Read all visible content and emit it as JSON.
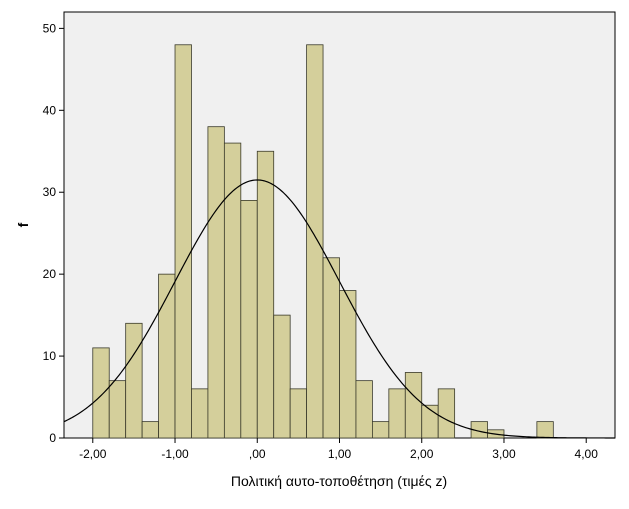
{
  "chart_data": {
    "type": "bar",
    "subtype": "histogram-with-normal-curve",
    "xlabel": "Πολιτική αυτο-τοποθέτηση (τιμές z)",
    "ylabel": "f",
    "xlim": [
      -2.35,
      4.35
    ],
    "ylim": [
      0,
      52
    ],
    "x_ticks": [
      -2,
      -1,
      0,
      1,
      2,
      3,
      4
    ],
    "x_tick_labels": [
      "-2,00",
      "-1,00",
      ",00",
      "1,00",
      "2,00",
      "3,00",
      "4,00"
    ],
    "y_ticks": [
      0,
      10,
      20,
      30,
      40,
      50
    ],
    "y_tick_labels": [
      "0",
      "10",
      "20",
      "30",
      "40",
      "50"
    ],
    "bin_width": 0.2,
    "bins": [
      {
        "start": -2.0,
        "count": 11
      },
      {
        "start": -1.8,
        "count": 7
      },
      {
        "start": -1.6,
        "count": 14
      },
      {
        "start": -1.4,
        "count": 2
      },
      {
        "start": -1.2,
        "count": 20
      },
      {
        "start": -1.0,
        "count": 48
      },
      {
        "start": -0.8,
        "count": 6
      },
      {
        "start": -0.6,
        "count": 38
      },
      {
        "start": -0.4,
        "count": 36
      },
      {
        "start": -0.2,
        "count": 29
      },
      {
        "start": 0.0,
        "count": 35
      },
      {
        "start": 0.2,
        "count": 15
      },
      {
        "start": 0.4,
        "count": 6
      },
      {
        "start": 0.6,
        "count": 48
      },
      {
        "start": 0.8,
        "count": 22
      },
      {
        "start": 1.0,
        "count": 18
      },
      {
        "start": 1.2,
        "count": 7
      },
      {
        "start": 1.4,
        "count": 2
      },
      {
        "start": 1.6,
        "count": 6
      },
      {
        "start": 1.8,
        "count": 8
      },
      {
        "start": 2.0,
        "count": 4
      },
      {
        "start": 2.2,
        "count": 6
      },
      {
        "start": 2.4,
        "count": 0
      },
      {
        "start": 2.6,
        "count": 2
      },
      {
        "start": 2.8,
        "count": 1
      },
      {
        "start": 3.0,
        "count": 0
      },
      {
        "start": 3.2,
        "count": 0
      },
      {
        "start": 3.4,
        "count": 2
      }
    ],
    "normal_curve": {
      "mean": 0.0,
      "sd": 1.0,
      "peak": 31.5
    },
    "grid": false,
    "colors": {
      "bar_fill": "#d4cf9b",
      "bar_stroke": "#3a3a2a",
      "plot_background": "#f0f0f0",
      "curve": "#000000",
      "axis": "#000000"
    }
  }
}
